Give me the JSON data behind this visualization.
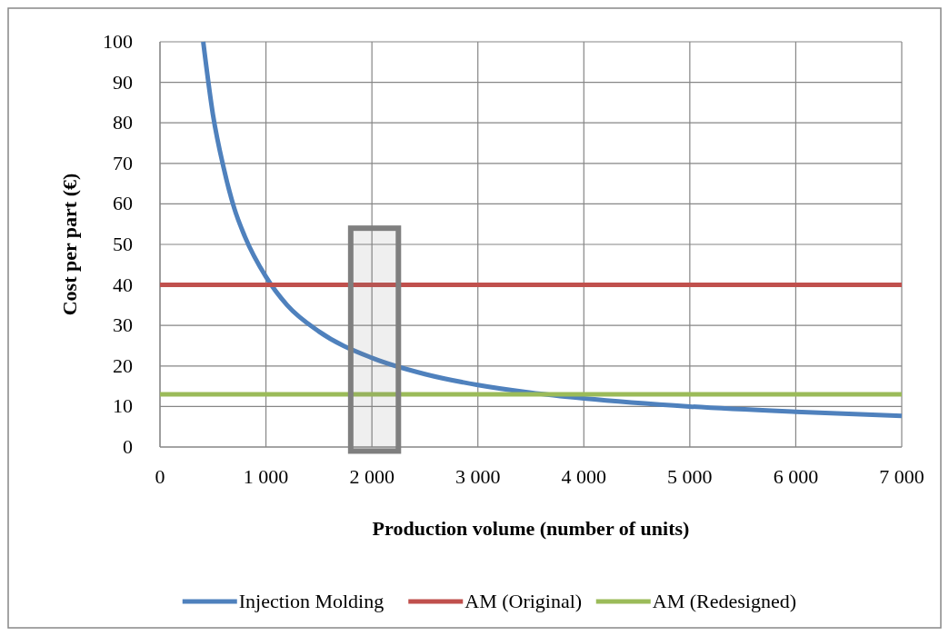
{
  "chart_data": {
    "type": "line",
    "xlabel": "Production volume (number of units)",
    "ylabel": "Cost per part (€)",
    "xlim": [
      0,
      7000
    ],
    "ylim": [
      0,
      100
    ],
    "xticks": [
      0,
      {
        "value": 1000,
        "label": "1 000"
      },
      {
        "value": 2000,
        "label": "2 000"
      },
      {
        "value": 3000,
        "label": "3 000"
      },
      {
        "value": 4000,
        "label": "4 000"
      },
      {
        "value": 5000,
        "label": "5 000"
      },
      {
        "value": 6000,
        "label": "6 000"
      },
      {
        "value": 7000,
        "label": "7 000"
      }
    ],
    "yticks": [
      0,
      10,
      20,
      30,
      40,
      50,
      60,
      70,
      80,
      90,
      100
    ],
    "bands": [
      {
        "axis": "x",
        "from": 1800,
        "to": 2250,
        "color": "#7f7f7f"
      }
    ],
    "grid": true,
    "legend": "bottom",
    "marker": "none",
    "line_style": "solid",
    "series": [
      {
        "name": "Injection Molding",
        "color": "#4f81bd",
        "x": [
          408,
          500,
          600,
          700,
          800,
          1000,
          1200,
          1500,
          2000,
          2500,
          3000,
          3500,
          4000,
          5000,
          6000,
          7000
        ],
        "values": [
          100,
          82,
          69,
          59,
          52,
          42,
          35,
          28.5,
          22,
          18,
          15.3,
          13.4,
          12,
          10,
          8.7,
          7.7
        ]
      },
      {
        "name": "AM (Original)",
        "color": "#c0504d",
        "x": [
          0,
          7000
        ],
        "values": [
          40,
          40
        ]
      },
      {
        "name": "AM (Redesigned)",
        "color": "#9bbb59",
        "x": [
          0,
          7000
        ],
        "values": [
          13,
          13
        ]
      }
    ]
  }
}
